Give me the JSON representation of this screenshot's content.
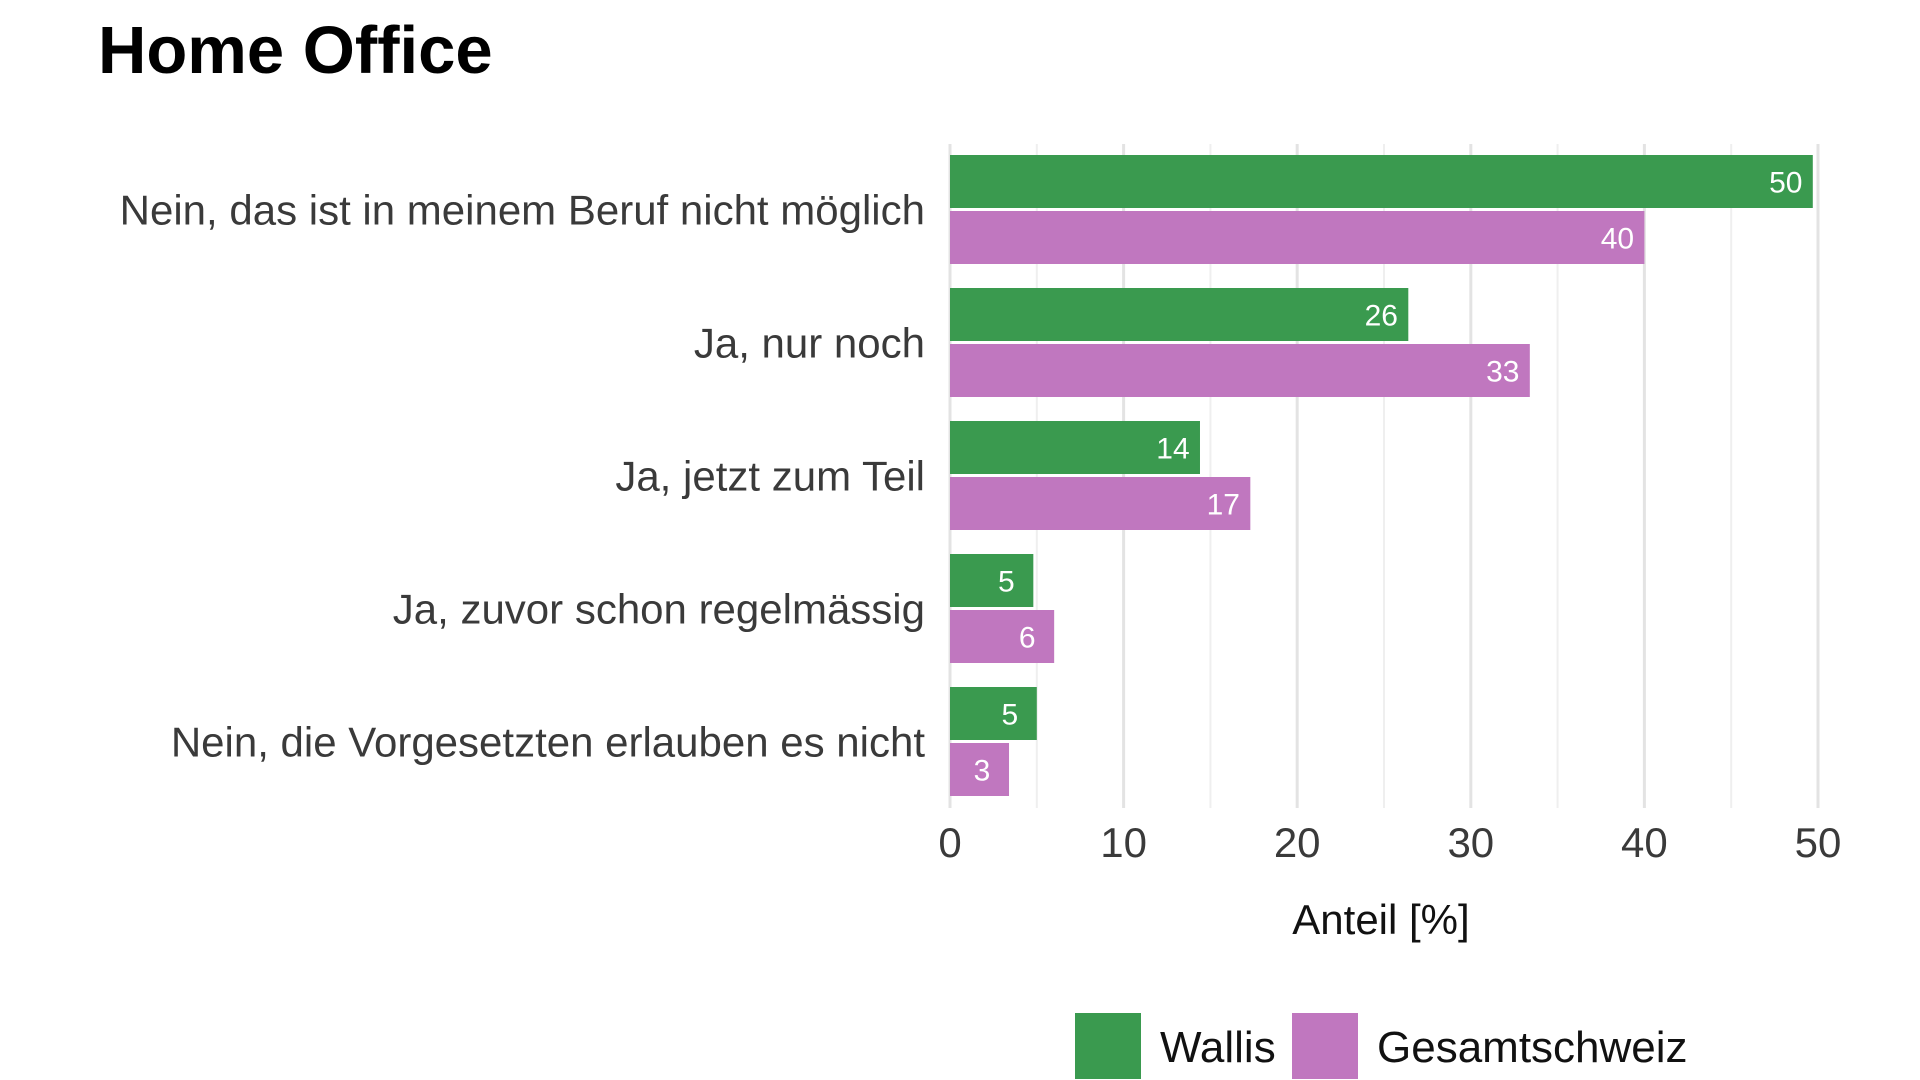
{
  "chart_data": {
    "type": "bar",
    "orientation": "horizontal",
    "title": "Home Office",
    "xlabel": "Anteil [%]",
    "ylabel": "",
    "xlim": [
      0,
      50
    ],
    "x_ticks": [
      0,
      10,
      20,
      30,
      40,
      50
    ],
    "grid": true,
    "legend_position": "bottom",
    "categories": [
      "Nein, das ist in meinem Beruf nicht möglich",
      "Ja, nur noch",
      "Ja, jetzt zum Teil",
      "Ja, zuvor schon regelmässig",
      "Nein, die Vorgesetzten erlauben es nicht"
    ],
    "series": [
      {
        "name": "Wallis",
        "color": "#3a9a4f",
        "values": [
          50,
          26,
          14,
          5,
          5
        ]
      },
      {
        "name": "Gesamtschweiz",
        "color": "#c077bf",
        "values": [
          40,
          33,
          17,
          6,
          3
        ]
      }
    ],
    "bar_value_precise": [
      [
        49.7,
        26.4,
        14.4,
        4.8,
        5.0
      ],
      [
        40.0,
        33.4,
        17.3,
        6.0,
        3.4
      ]
    ]
  }
}
